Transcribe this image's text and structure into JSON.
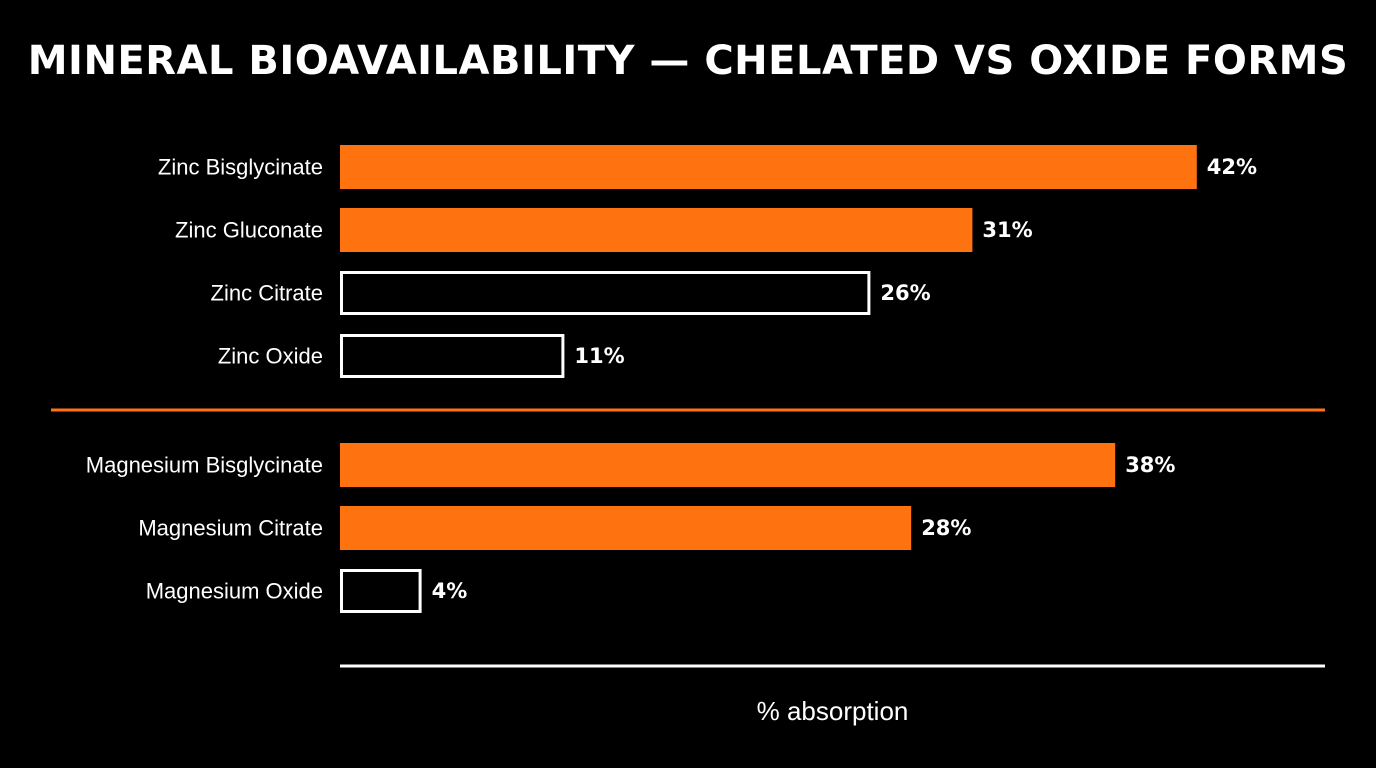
{
  "chart_data": {
    "type": "bar",
    "orientation": "horizontal",
    "title": "MINERAL BIOAVAILABILITY — CHELATED VS OXIDE FORMS",
    "xlabel": "% absorption",
    "ylabel": "",
    "xlim": [
      0,
      50
    ],
    "grid": false,
    "groups": [
      {
        "categories": [
          "Zinc Bisglycinate",
          "Zinc Gluconate",
          "Zinc Citrate",
          "Zinc Oxide"
        ],
        "values": [
          42,
          31,
          26,
          11
        ],
        "labels": [
          "42%",
          "31%",
          "26%",
          "11%"
        ],
        "filled": [
          true,
          true,
          false,
          false
        ]
      },
      {
        "categories": [
          "Magnesium Bisglycinate",
          "Magnesium Citrate",
          "Magnesium Oxide"
        ],
        "values": [
          38,
          28,
          4
        ],
        "labels": [
          "38%",
          "28%",
          "4%"
        ],
        "filled": [
          true,
          true,
          false
        ]
      }
    ],
    "colors": {
      "background": "#000000",
      "accent": "#ff7210",
      "outline": "#ffffff",
      "text": "#ffffff"
    }
  }
}
